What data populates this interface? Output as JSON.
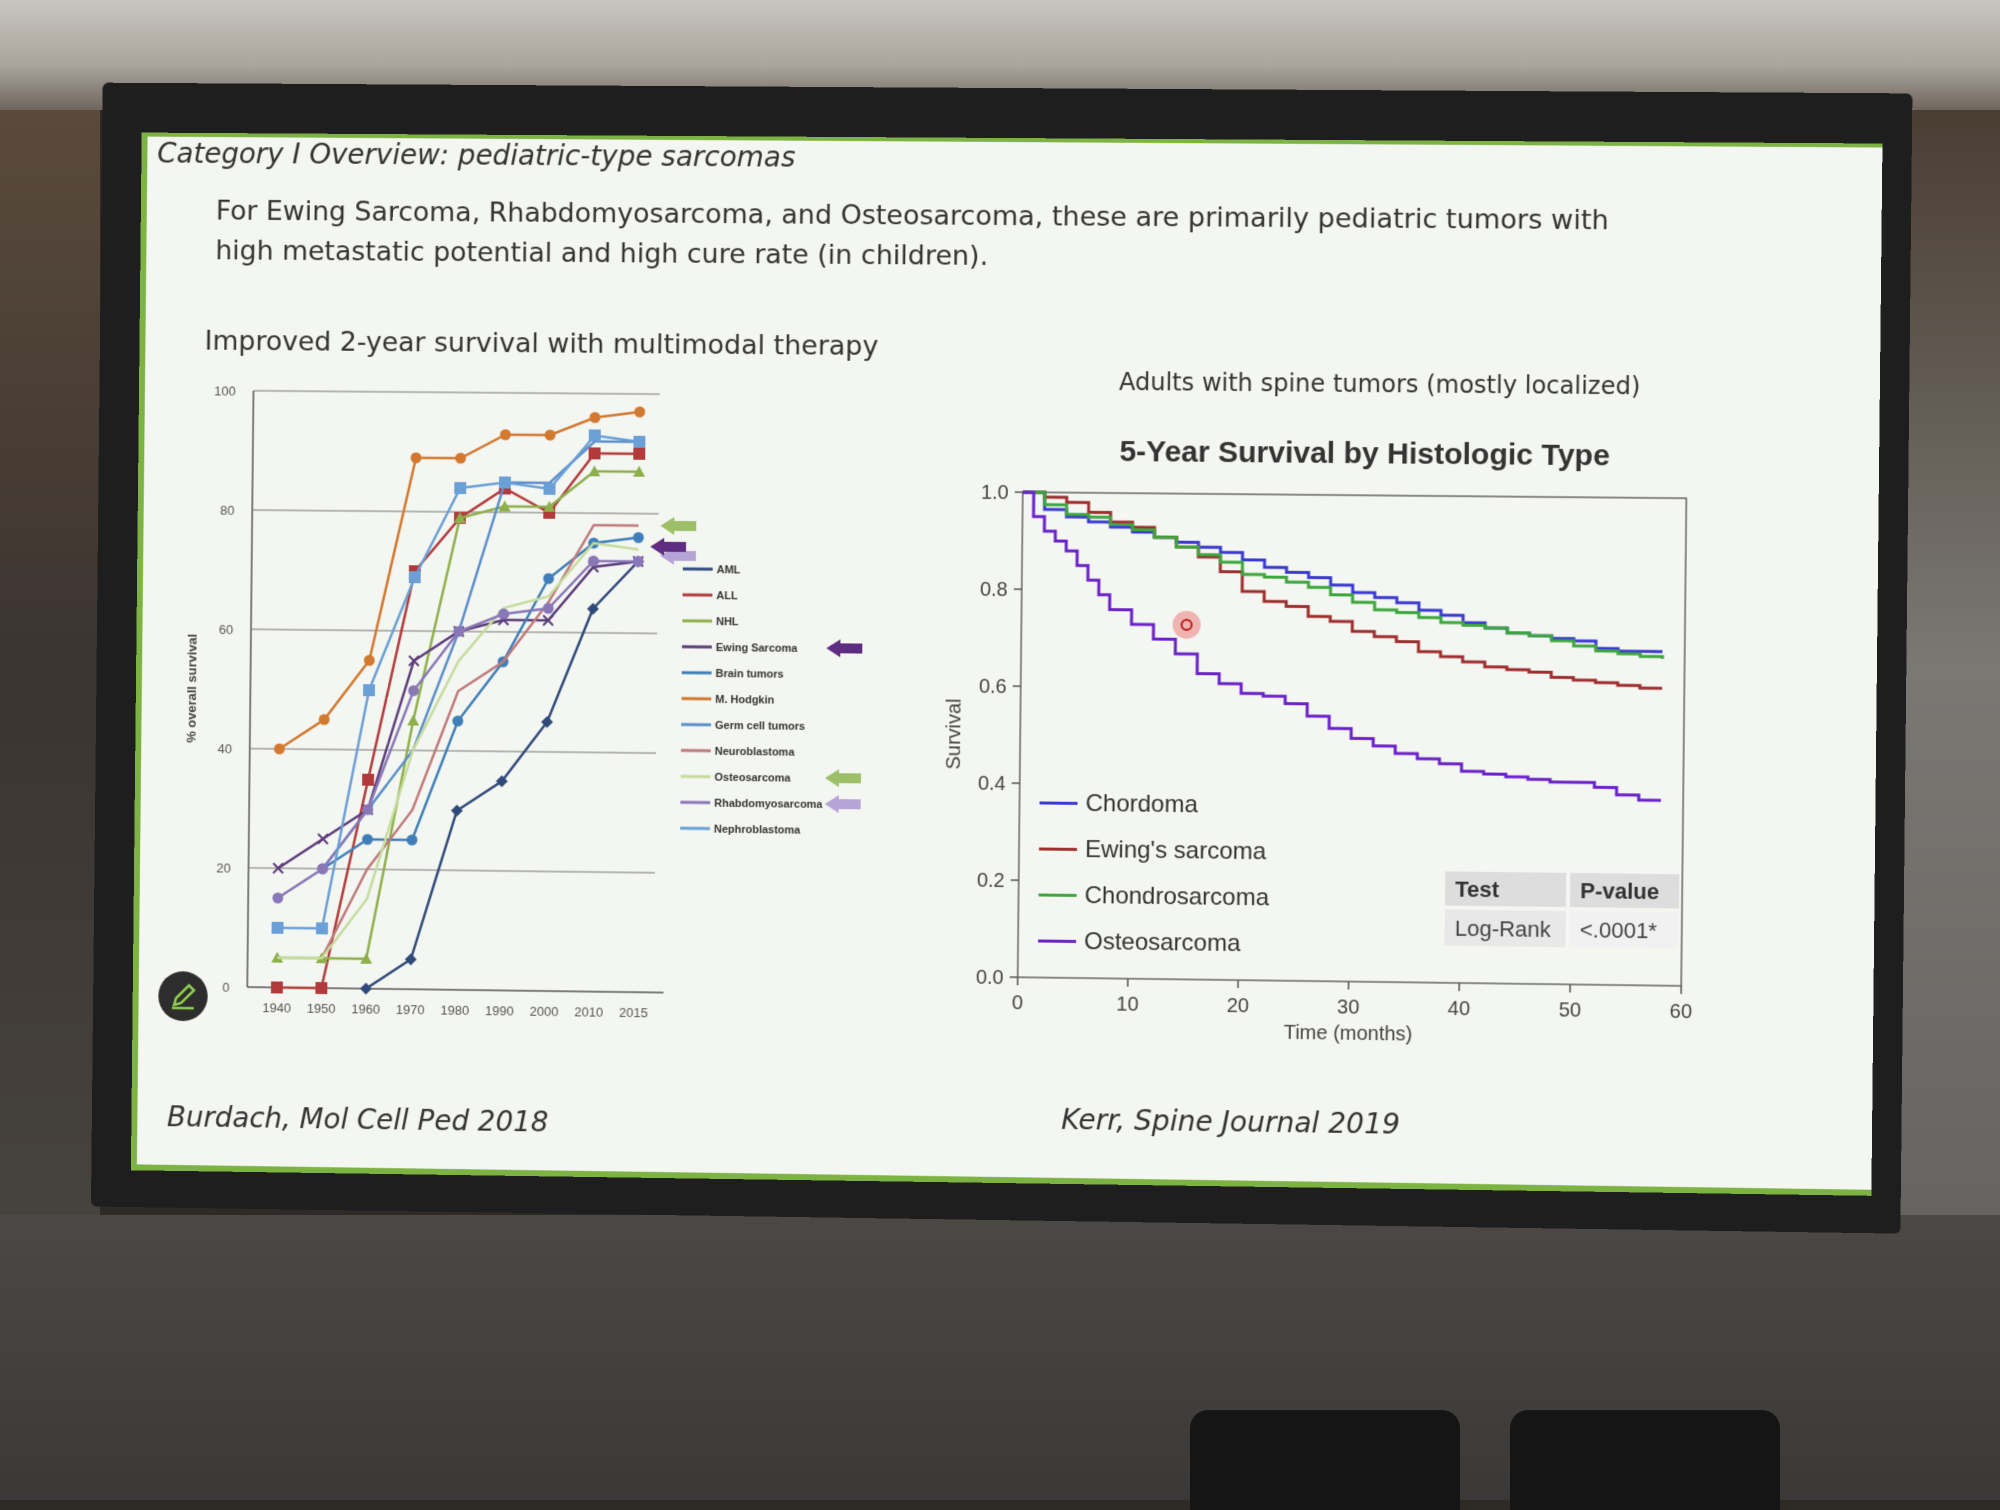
{
  "slide": {
    "title": "Category I Overview: pediatric-type sarcomas",
    "body": "For Ewing Sarcoma, Rhabdomyosarcoma, and Osteosarcoma, these are primarily pediatric tumors with high metastatic potential and high cure rate (in children).",
    "left_heading": "Improved 2-year survival with multimodal therapy",
    "right_subheading": "Adults with spine tumors (mostly localized)",
    "left_citation": "Burdach, Mol Cell Ped 2018",
    "right_citation": "Kerr, Spine Journal 2019"
  },
  "icons": {
    "edit": "edit-pencil-icon",
    "pointer": "laser-pointer-dot"
  },
  "chart_data": [
    {
      "type": "line",
      "title": "",
      "xlabel": "",
      "ylabel": "% overall survival",
      "categories": [
        "1940",
        "1950",
        "1960",
        "1970",
        "1980",
        "1990",
        "2000",
        "2010",
        "2015"
      ],
      "ylim": [
        0,
        100
      ],
      "yticks": [
        0,
        20,
        40,
        60,
        80,
        100
      ],
      "grid": true,
      "legend": "right",
      "series": [
        {
          "name": "AML",
          "color": "#2f4a7a",
          "marker": "diamond",
          "values": [
            null,
            null,
            0,
            5,
            30,
            35,
            45,
            64,
            72
          ]
        },
        {
          "name": "ALL",
          "color": "#b23a3a",
          "marker": "square",
          "values": [
            0,
            0,
            35,
            70,
            79,
            84,
            80,
            90,
            90
          ]
        },
        {
          "name": "NHL",
          "color": "#8db04a",
          "marker": "triangle",
          "values": [
            5,
            5,
            5,
            45,
            79,
            81,
            81,
            87,
            87
          ]
        },
        {
          "name": "Ewing Sarcoma",
          "color": "#5c3d7a",
          "marker": "cross",
          "values": [
            20,
            25,
            30,
            55,
            60,
            62,
            62,
            71,
            72
          ]
        },
        {
          "name": "Brain tumors",
          "color": "#3f7fb8",
          "marker": "circle",
          "values": [
            null,
            20,
            25,
            25,
            45,
            55,
            69,
            75,
            76
          ]
        },
        {
          "name": "M. Hodgkin",
          "color": "#d2782f",
          "marker": "circle",
          "values": [
            40,
            45,
            55,
            89,
            89,
            93,
            93,
            96,
            97
          ]
        },
        {
          "name": "Germ cell tumors",
          "color": "#5b8fc9",
          "marker": "none",
          "values": [
            null,
            20,
            30,
            40,
            60,
            85,
            85,
            92,
            92
          ]
        },
        {
          "name": "Neuroblastoma",
          "color": "#c07a7a",
          "marker": "none",
          "values": [
            null,
            5,
            20,
            30,
            50,
            55,
            65,
            78,
            78
          ]
        },
        {
          "name": "Osteosarcoma",
          "color": "#c5dc9c",
          "marker": "none",
          "values": [
            5,
            5,
            15,
            40,
            55,
            64,
            66,
            75,
            74
          ]
        },
        {
          "name": "Rhabdomyosarcoma",
          "color": "#8a77b8",
          "marker": "circle",
          "values": [
            15,
            20,
            30,
            50,
            60,
            63,
            64,
            72,
            72
          ]
        },
        {
          "name": "Nephroblastoma",
          "color": "#6aa0d6",
          "marker": "square",
          "values": [
            10,
            10,
            50,
            69,
            84,
            85,
            84,
            93,
            92
          ]
        }
      ],
      "legend_arrows": [
        {
          "label": "Ewing Sarcoma",
          "color": "#5e2d82"
        },
        {
          "label": "Osteosarcoma",
          "color": "#9cbf68"
        },
        {
          "label": "Rhabdomyosarcoma",
          "color": "#b7a4d6"
        }
      ]
    },
    {
      "type": "line",
      "title": "5-Year Survival by Histologic Type",
      "xlabel": "Time (months)",
      "ylabel": "Survival",
      "xlim": [
        0,
        60
      ],
      "xticks": [
        0,
        10,
        20,
        30,
        40,
        50,
        60
      ],
      "ylim": [
        0,
        1.0
      ],
      "yticks": [
        "0.0",
        "0.2",
        "0.4",
        "0.6",
        "0.8",
        "1.0"
      ],
      "grid": false,
      "legend": "bottom-left",
      "series": [
        {
          "name": "Chordoma",
          "color": "#3a3ad1",
          "x": [
            0,
            2,
            4,
            6,
            8,
            10,
            12,
            14,
            16,
            18,
            20,
            22,
            24,
            26,
            28,
            30,
            32,
            34,
            36,
            38,
            40,
            42,
            44,
            46,
            48,
            50,
            52,
            54,
            56,
            58
          ],
          "y": [
            1.0,
            0.965,
            0.95,
            0.94,
            0.93,
            0.92,
            0.91,
            0.9,
            0.89,
            0.88,
            0.865,
            0.85,
            0.84,
            0.83,
            0.815,
            0.8,
            0.79,
            0.78,
            0.765,
            0.755,
            0.74,
            0.73,
            0.72,
            0.715,
            0.71,
            0.705,
            0.69,
            0.685,
            0.685,
            0.685
          ]
        },
        {
          "name": "Ewing's sarcoma",
          "color": "#9e2f2f",
          "x": [
            0,
            2,
            4,
            6,
            8,
            10,
            12,
            14,
            16,
            18,
            20,
            22,
            24,
            26,
            28,
            30,
            32,
            34,
            36,
            38,
            40,
            42,
            44,
            46,
            48,
            50,
            52,
            54,
            56,
            58
          ],
          "y": [
            1.0,
            0.99,
            0.98,
            0.96,
            0.94,
            0.93,
            0.91,
            0.89,
            0.87,
            0.84,
            0.8,
            0.78,
            0.77,
            0.75,
            0.74,
            0.72,
            0.71,
            0.7,
            0.68,
            0.67,
            0.66,
            0.65,
            0.645,
            0.64,
            0.63,
            0.625,
            0.62,
            0.615,
            0.61,
            0.61
          ]
        },
        {
          "name": "Chondrosarcoma",
          "color": "#3da63d",
          "x": [
            0,
            2,
            4,
            6,
            8,
            10,
            12,
            14,
            16,
            18,
            20,
            22,
            24,
            26,
            28,
            30,
            32,
            34,
            36,
            38,
            40,
            42,
            44,
            46,
            48,
            50,
            52,
            54,
            56,
            58
          ],
          "y": [
            1.0,
            0.975,
            0.955,
            0.95,
            0.935,
            0.925,
            0.91,
            0.89,
            0.875,
            0.86,
            0.835,
            0.83,
            0.82,
            0.81,
            0.795,
            0.78,
            0.765,
            0.76,
            0.75,
            0.74,
            0.735,
            0.73,
            0.72,
            0.715,
            0.705,
            0.695,
            0.685,
            0.68,
            0.675,
            0.67
          ]
        },
        {
          "name": "Osteosarcoma",
          "color": "#6a22c9",
          "x": [
            0,
            1,
            2,
            3,
            4,
            5,
            6,
            7,
            8,
            10,
            12,
            14,
            16,
            18,
            20,
            22,
            24,
            26,
            28,
            30,
            32,
            34,
            36,
            38,
            40,
            42,
            44,
            46,
            48,
            50,
            52,
            54,
            56,
            58
          ],
          "y": [
            1.0,
            0.95,
            0.92,
            0.9,
            0.88,
            0.85,
            0.82,
            0.79,
            0.76,
            0.73,
            0.7,
            0.67,
            0.63,
            0.61,
            0.59,
            0.585,
            0.57,
            0.545,
            0.52,
            0.5,
            0.485,
            0.47,
            0.46,
            0.45,
            0.435,
            0.43,
            0.425,
            0.42,
            0.415,
            0.415,
            0.405,
            0.39,
            0.38,
            0.38
          ]
        }
      ],
      "table": {
        "headers": [
          "Test",
          "P-value"
        ],
        "rows": [
          [
            "Log-Rank",
            "<.0001*"
          ]
        ]
      }
    }
  ]
}
